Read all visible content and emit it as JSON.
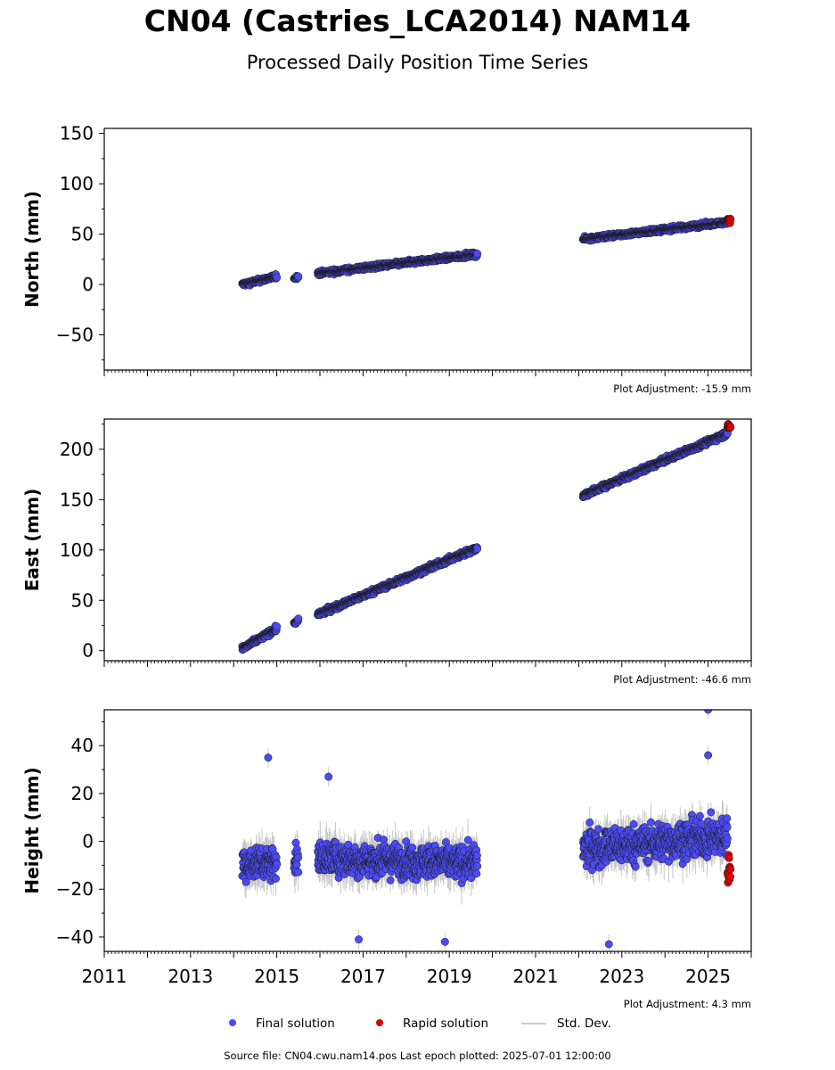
{
  "title": "CN04 (Castries_LCA2014) NAM14",
  "subtitle": "Processed Daily Position Time Series",
  "footer": "Source file: CN04.cwu.nam14.pos  Last epoch plotted: 2025-07-01 12:00:00",
  "legend": {
    "final": "Final solution",
    "rapid": "Rapid solution",
    "std": "Std. Dev."
  },
  "colors": {
    "final": "#4b4bf5",
    "rapid": "#e00000",
    "stddev": "#c8c8c8",
    "marker_edge": "#1a1a1a"
  },
  "chart_data": [
    {
      "type": "scatter",
      "ylabel": "North (mm)",
      "adjustment": "Plot Adjustment: -15.9 mm",
      "xlim": [
        2011,
        2026
      ],
      "ylim": [
        -85,
        155
      ],
      "yticks": [
        -50,
        0,
        50,
        100,
        150
      ],
      "ytick_labels": [
        "−50",
        "0",
        "50",
        "100",
        "150"
      ],
      "show_x_tick_labels": false,
      "segments": [
        {
          "start": 2014.2,
          "end": 2015.0,
          "y0": 0,
          "y1": 8,
          "noise": 2.5,
          "sigma": 1.5
        },
        {
          "start": 2015.4,
          "end": 2015.5,
          "y0": 6,
          "y1": 8,
          "noise": 2,
          "sigma": 1.5
        },
        {
          "start": 2015.95,
          "end": 2019.65,
          "y0": 11,
          "y1": 30,
          "noise": 2.5,
          "sigma": 1.5
        },
        {
          "start": 2022.1,
          "end": 2025.45,
          "y0": 45,
          "y1": 62,
          "noise": 2.5,
          "sigma": 1.5
        }
      ],
      "rapid": {
        "start": 2025.45,
        "end": 2025.52,
        "y": 64,
        "noise": 2.5
      }
    },
    {
      "type": "scatter",
      "ylabel": "East (mm)",
      "adjustment": "Plot Adjustment: -46.6 mm",
      "xlim": [
        2011,
        2026
      ],
      "ylim": [
        -10,
        230
      ],
      "yticks": [
        0,
        50,
        100,
        150,
        200
      ],
      "ytick_labels": [
        "0",
        "50",
        "100",
        "150",
        "200"
      ],
      "show_x_tick_labels": false,
      "segments": [
        {
          "start": 2014.2,
          "end": 2015.0,
          "y0": 2,
          "y1": 22,
          "noise": 3,
          "sigma": 1.8
        },
        {
          "start": 2015.4,
          "end": 2015.5,
          "y0": 27,
          "y1": 30,
          "noise": 2,
          "sigma": 1.8
        },
        {
          "start": 2015.95,
          "end": 2019.65,
          "y0": 36,
          "y1": 102,
          "noise": 3,
          "sigma": 1.8
        },
        {
          "start": 2022.1,
          "end": 2025.45,
          "y0": 154,
          "y1": 216,
          "noise": 3,
          "sigma": 1.8
        }
      ],
      "rapid": {
        "start": 2025.45,
        "end": 2025.52,
        "y": 222,
        "noise": 3
      }
    },
    {
      "type": "scatter",
      "ylabel": "Height (mm)",
      "adjustment": "Plot Adjustment: 4.3 mm",
      "xlim": [
        2011,
        2026
      ],
      "ylim": [
        -46,
        55
      ],
      "yticks": [
        -40,
        -20,
        0,
        20,
        40
      ],
      "ytick_labels": [
        "−40",
        "−20",
        "0",
        "20",
        "40"
      ],
      "show_x_tick_labels": true,
      "xticks": [
        2011,
        2013,
        2015,
        2017,
        2019,
        2021,
        2023,
        2025
      ],
      "xtick_labels": [
        "2011",
        "2013",
        "2015",
        "2017",
        "2019",
        "2021",
        "2023",
        "2025"
      ],
      "segments": [
        {
          "start": 2014.2,
          "end": 2015.0,
          "y0": -10,
          "y1": -8,
          "noise": 8,
          "sigma": 5
        },
        {
          "start": 2015.4,
          "end": 2015.5,
          "y0": -8,
          "y1": -8,
          "noise": 7,
          "sigma": 5
        },
        {
          "start": 2015.95,
          "end": 2019.65,
          "y0": -7,
          "y1": -9,
          "noise": 8,
          "sigma": 5
        },
        {
          "start": 2022.1,
          "end": 2025.45,
          "y0": -3,
          "y1": 2,
          "noise": 9,
          "sigma": 5
        }
      ],
      "rapid": {
        "start": 2025.45,
        "end": 2025.52,
        "y": -12,
        "noise": 7
      },
      "outliers": [
        [
          2014.8,
          35
        ],
        [
          2025.0,
          36
        ],
        [
          2025.0,
          55
        ],
        [
          2022.7,
          -43
        ],
        [
          2016.9,
          -41
        ],
        [
          2018.9,
          -42
        ],
        [
          2016.2,
          27
        ]
      ]
    }
  ]
}
